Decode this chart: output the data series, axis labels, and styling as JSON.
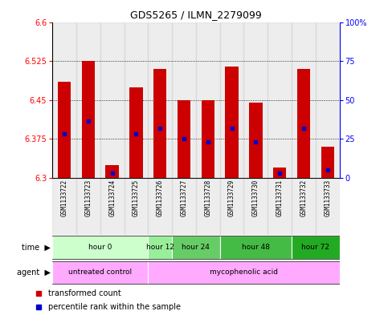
{
  "title": "GDS5265 / ILMN_2279099",
  "samples": [
    "GSM1133722",
    "GSM1133723",
    "GSM1133724",
    "GSM1133725",
    "GSM1133726",
    "GSM1133727",
    "GSM1133728",
    "GSM1133729",
    "GSM1133730",
    "GSM1133731",
    "GSM1133732",
    "GSM1133733"
  ],
  "bar_tops": [
    6.485,
    6.525,
    6.325,
    6.475,
    6.51,
    6.45,
    6.45,
    6.515,
    6.445,
    6.32,
    6.51,
    6.36
  ],
  "bar_bottoms": [
    6.3,
    6.3,
    6.3,
    6.3,
    6.3,
    6.3,
    6.3,
    6.3,
    6.3,
    6.3,
    6.3,
    6.3
  ],
  "percentile_values": [
    6.385,
    6.41,
    6.31,
    6.385,
    6.395,
    6.375,
    6.37,
    6.395,
    6.37,
    6.31,
    6.395,
    6.315
  ],
  "ylim": [
    6.3,
    6.6
  ],
  "yticks": [
    6.3,
    6.375,
    6.45,
    6.525,
    6.6
  ],
  "ytick_labels": [
    "6.3",
    "6.375",
    "6.45",
    "6.525",
    "6.6"
  ],
  "right_ytick_labels": [
    "0",
    "25",
    "50",
    "75",
    "100%"
  ],
  "bar_color": "#cc0000",
  "percentile_color": "#0000cc",
  "time_groups": [
    {
      "label": "hour 0",
      "start": 0,
      "end": 3,
      "color": "#ccffcc"
    },
    {
      "label": "hour 12",
      "start": 4,
      "end": 4,
      "color": "#99ee99"
    },
    {
      "label": "hour 24",
      "start": 5,
      "end": 6,
      "color": "#66cc66"
    },
    {
      "label": "hour 48",
      "start": 7,
      "end": 9,
      "color": "#44bb44"
    },
    {
      "label": "hour 72",
      "start": 10,
      "end": 11,
      "color": "#22aa22"
    }
  ],
  "agent_groups": [
    {
      "label": "untreated control",
      "start": 0,
      "end": 3,
      "color": "#ffaaff"
    },
    {
      "label": "mycophenolic acid",
      "start": 4,
      "end": 11,
      "color": "#ffaaff"
    }
  ],
  "legend_items": [
    {
      "label": "transformed count",
      "color": "#cc0000"
    },
    {
      "label": "percentile rank within the sample",
      "color": "#0000cc"
    }
  ],
  "sample_col_color": "#cccccc",
  "fig_bg_color": "#ffffff"
}
